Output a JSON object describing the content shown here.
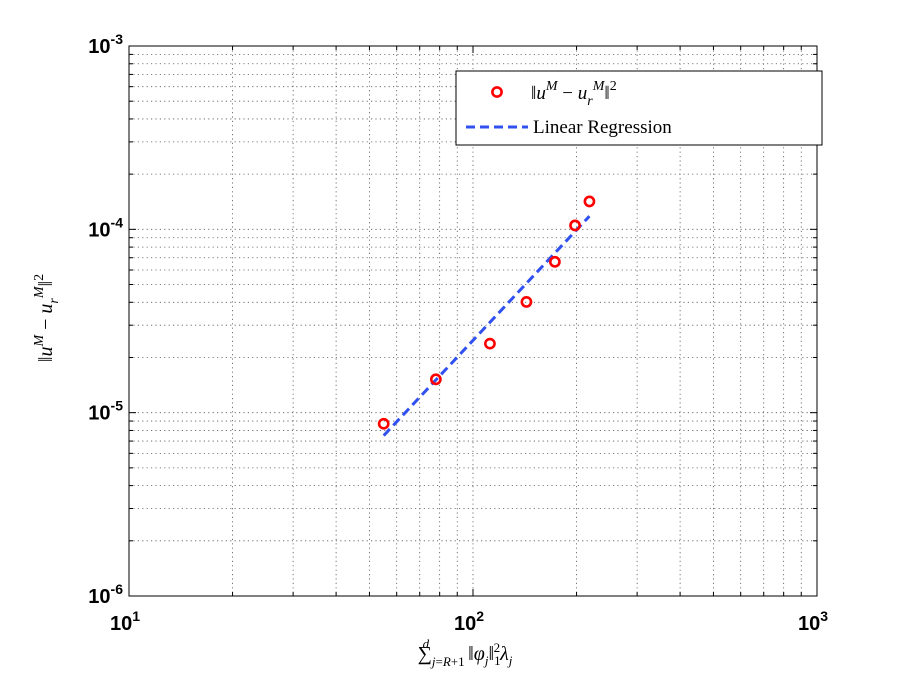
{
  "chart_data": {
    "type": "scatter",
    "title": "",
    "xlabel": "∑_{j=R+1}^{d} ‖φ_j‖_1^2 λ_j",
    "ylabel": "‖u^M − u_r^M‖^2",
    "xscale": "log",
    "yscale": "log",
    "xlim": [
      10,
      1000
    ],
    "ylim": [
      1e-06,
      0.001
    ],
    "grid": true,
    "legend_position": "top-right",
    "x_ticks": [
      {
        "value": 10,
        "base": "10",
        "exp": "1"
      },
      {
        "value": 100,
        "base": "10",
        "exp": "2"
      },
      {
        "value": 1000,
        "base": "10",
        "exp": "3"
      }
    ],
    "y_ticks": [
      {
        "value": 1e-06,
        "base": "10",
        "exp": "-6"
      },
      {
        "value": 1e-05,
        "base": "10",
        "exp": "-5"
      },
      {
        "value": 0.0001,
        "base": "10",
        "exp": "-4"
      },
      {
        "value": 0.001,
        "base": "10",
        "exp": "-3"
      }
    ],
    "series": [
      {
        "name": "‖u^M − u_r^M‖^2",
        "kind": "markers",
        "marker": "circle",
        "color": "#ff0000",
        "x": [
          55,
          78,
          112,
          143,
          173,
          198,
          218
        ],
        "y": [
          8.7e-06,
          1.52e-05,
          2.38e-05,
          4.02e-05,
          6.65e-05,
          0.000105,
          0.000142
        ]
      },
      {
        "name": "Linear Regression",
        "kind": "line",
        "style": "dashed",
        "color": "#3050f0",
        "x": [
          55,
          218
        ],
        "y": [
          7.5e-06,
          0.000118
        ]
      }
    ]
  },
  "legend": {
    "entries": [
      {
        "label_html": "‖<tspan class='serif-it'>u</tspan>",
        "label": "‖u^M − u_r^M‖^2"
      },
      {
        "label": "Linear Regression"
      }
    ]
  }
}
